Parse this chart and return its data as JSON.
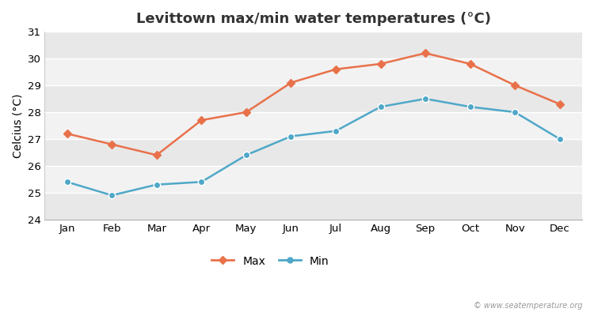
{
  "title": "Levittown max/min water temperatures (°C)",
  "ylabel": "Celcius (°C)",
  "months": [
    "Jan",
    "Feb",
    "Mar",
    "Apr",
    "May",
    "Jun",
    "Jul",
    "Aug",
    "Sep",
    "Oct",
    "Nov",
    "Dec"
  ],
  "max_values": [
    27.2,
    26.8,
    26.4,
    27.7,
    28.0,
    29.1,
    29.6,
    29.8,
    30.2,
    29.8,
    29.0,
    28.3
  ],
  "min_values": [
    25.4,
    24.9,
    25.3,
    25.4,
    26.4,
    27.1,
    27.3,
    28.2,
    28.5,
    28.2,
    28.0,
    27.0
  ],
  "max_color": "#e8714a",
  "min_color": "#4fa8c8",
  "figure_bg": "#ffffff",
  "plot_bg_light": "#ebebeb",
  "plot_bg_dark": "#e0e0e0",
  "band_colors": [
    "#e8e8e8",
    "#f2f2f2"
  ],
  "ylim": [
    24,
    31
  ],
  "yticks": [
    24,
    25,
    26,
    27,
    28,
    29,
    30,
    31
  ],
  "grid_color": "#ffffff",
  "watermark": "© www.seatemperature.org",
  "legend_max": "Max",
  "legend_min": "Min",
  "title_fontsize": 13,
  "axis_fontsize": 10,
  "tick_fontsize": 9.5
}
